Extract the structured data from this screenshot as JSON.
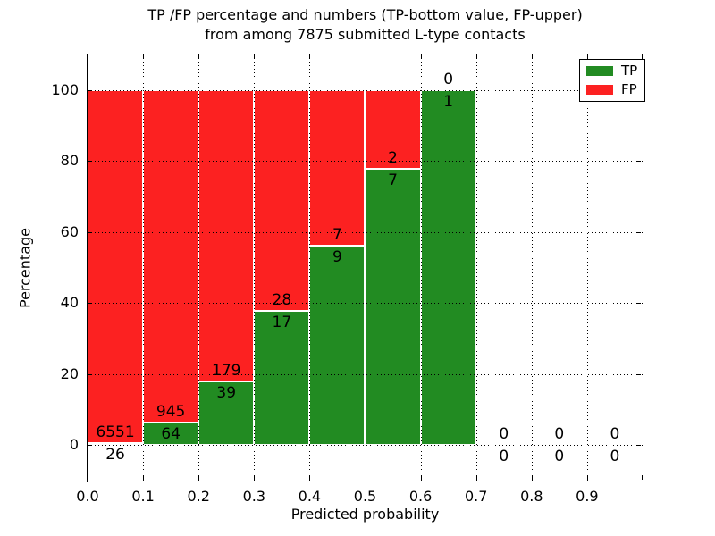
{
  "chart_data": {
    "type": "bar",
    "stacked": true,
    "title_line1": "TP /FP percentage and numbers (TP-bottom value, FP-upper)",
    "title_line2": "from among 7875 submitted L-type contacts",
    "xlabel": "Predicted probability",
    "ylabel": "Percentage",
    "xticks": [
      "0.0",
      "0.1",
      "0.2",
      "0.3",
      "0.4",
      "0.5",
      "0.6",
      "0.7",
      "0.8",
      "0.9"
    ],
    "yticks": [
      0,
      20,
      40,
      60,
      80,
      100
    ],
    "xlim": [
      0.0,
      1.0
    ],
    "ylim": [
      -10.5,
      110.5
    ],
    "grid": "dotted, on top of bars",
    "legend_position": "upper right",
    "bin_width": 0.1,
    "bins": [
      {
        "x0": 0.0,
        "x1": 0.1,
        "tp": 26,
        "fp": 6551,
        "tp_pct": 0.4
      },
      {
        "x0": 0.1,
        "x1": 0.2,
        "tp": 64,
        "fp": 945,
        "tp_pct": 6.34
      },
      {
        "x0": 0.2,
        "x1": 0.3,
        "tp": 39,
        "fp": 179,
        "tp_pct": 17.89
      },
      {
        "x0": 0.3,
        "x1": 0.4,
        "tp": 17,
        "fp": 28,
        "tp_pct": 37.78
      },
      {
        "x0": 0.4,
        "x1": 0.5,
        "tp": 9,
        "fp": 7,
        "tp_pct": 56.25
      },
      {
        "x0": 0.5,
        "x1": 0.6,
        "tp": 7,
        "fp": 2,
        "tp_pct": 77.78
      },
      {
        "x0": 0.6,
        "x1": 0.7,
        "tp": 1,
        "fp": 0,
        "tp_pct": 100.0
      },
      {
        "x0": 0.7,
        "x1": 0.8,
        "tp": 0,
        "fp": 0,
        "tp_pct": null
      },
      {
        "x0": 0.8,
        "x1": 0.9,
        "tp": 0,
        "fp": 0,
        "tp_pct": null
      },
      {
        "x0": 0.9,
        "x1": 1.0,
        "tp": 0,
        "fp": 0,
        "tp_pct": null
      }
    ],
    "legend": [
      {
        "label": "TP",
        "color": "#228b22"
      },
      {
        "label": "FP",
        "color": "#fc2121"
      }
    ],
    "colors": {
      "tp_green": "#228b22",
      "fp_red": "#fc2121",
      "grid": "#000000",
      "bar_edge": "#ffffff",
      "text": "#000000",
      "background": "#ffffff"
    }
  }
}
